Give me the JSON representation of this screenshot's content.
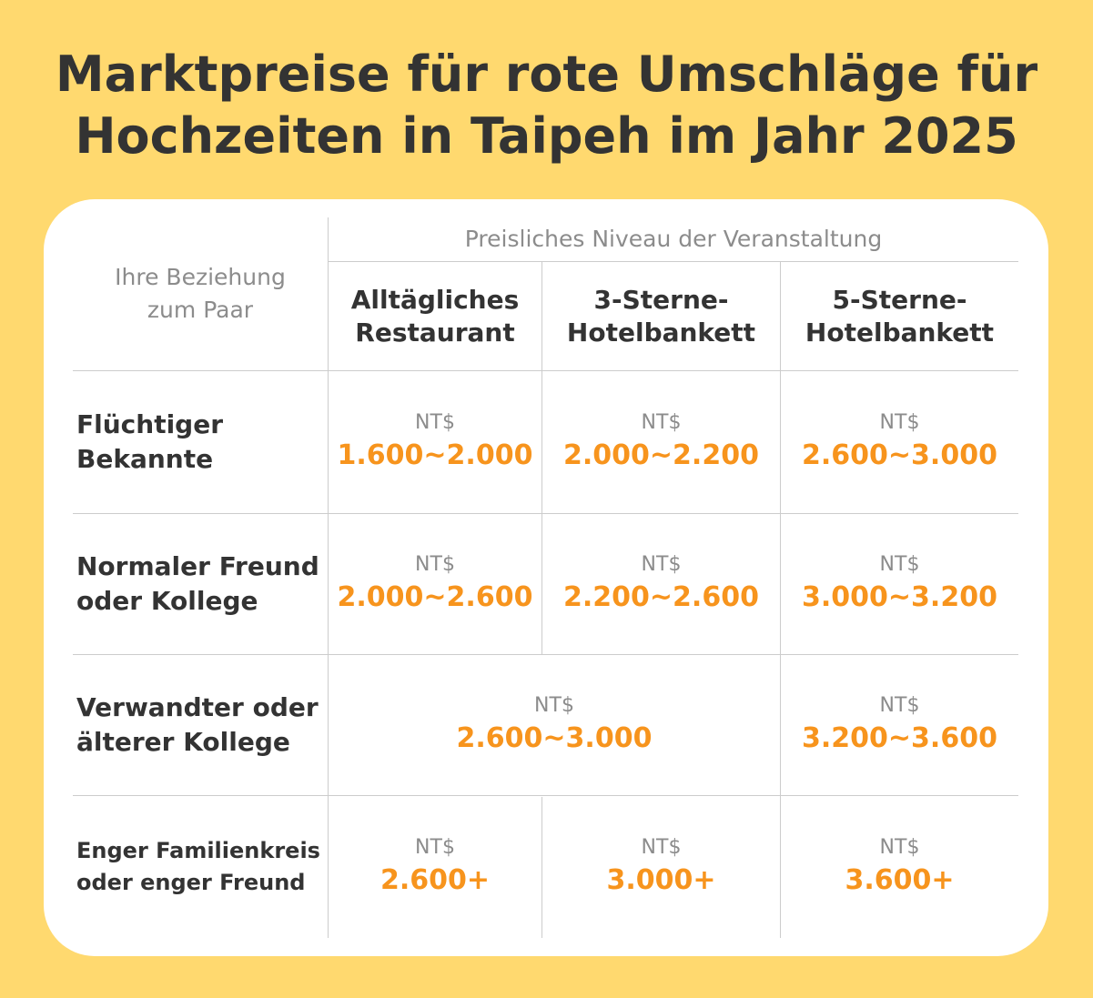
{
  "title": {
    "line1": "Marktpreise für rote Umschläge für",
    "line2": "Hochzeiten in Taipeh im Jahr 2025"
  },
  "colors": {
    "background": "#FFD96F",
    "card": "#FFFFFF",
    "text": "#333333",
    "muted": "#8C8C8C",
    "accent": "#F7941D",
    "grid": "#CCCCCC"
  },
  "table": {
    "relationship_header": "Ihre Beziehung zum Paar",
    "level_header": "Preisliches Niveau der Veranstaltung",
    "columns": [
      {
        "line1": "Alltägliches",
        "line2": "Restaurant"
      },
      {
        "line1": "3-Sterne-",
        "line2": "Hotelbankett"
      },
      {
        "line1": "5-Sterne-",
        "line2": "Hotelbankett"
      }
    ],
    "currency": "NT$",
    "rows": [
      {
        "label_line1": "Flüchtiger",
        "label_line2": "Bekannte",
        "values": [
          "1.600~2.000",
          "2.000~2.200",
          "2.600~3.000"
        ]
      },
      {
        "label_line1": "Normaler Freund",
        "label_line2": "oder Kollege",
        "values": [
          "2.000~2.600",
          "2.200~2.600",
          "3.000~3.200"
        ]
      },
      {
        "label_line1": "Verwandter oder",
        "label_line2": "älterer Kollege",
        "values": [
          "2.600~3.000",
          "3.200~3.600"
        ]
      },
      {
        "label_line1": "Enger Familienkreis",
        "label_line2": "oder enger Freund",
        "values": [
          "2.600+",
          "3.000+",
          "3.600+"
        ]
      }
    ]
  }
}
